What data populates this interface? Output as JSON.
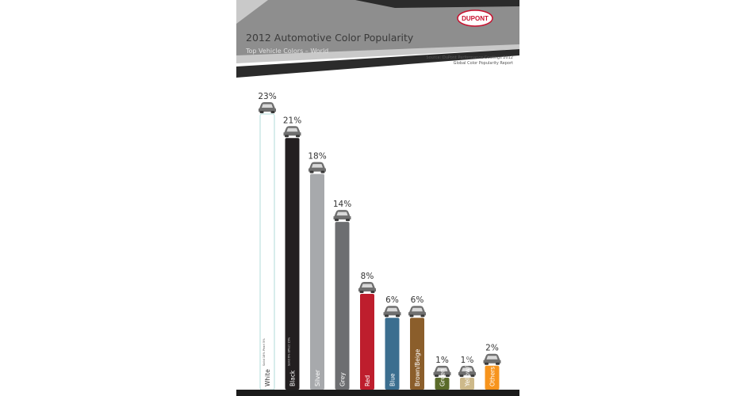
{
  "header": {
    "title": "2012 Automotive Color Popularity",
    "subtitle": "Top Vehicle Colors – World",
    "logo_text": "DUPONT",
    "source": "Source: DuPont Performance Coatings 2012 Global Color Popularity Report"
  },
  "colors": {
    "header_dark": "#2b2b2b",
    "header_grey": "#8e8e8e",
    "header_light": "#c9c9c9",
    "logo_red": "#c8102e",
    "car_icon": "#6f6f6f"
  },
  "chart_data": {
    "type": "bar",
    "title": "2012 Automotive Color Popularity",
    "subtitle": "Top Vehicle Colors – World",
    "categories": [
      "White",
      "Black",
      "Silver",
      "Grey",
      "Red",
      "Blue",
      "Brown/Beige",
      "Green",
      "Yellow/Gold",
      "Others"
    ],
    "values": [
      23,
      21,
      18,
      14,
      8,
      6,
      6,
      1,
      1,
      2
    ],
    "value_labels": [
      "23%",
      "21%",
      "18%",
      "14%",
      "8%",
      "6%",
      "6%",
      "1%",
      "1%",
      "2%"
    ],
    "bar_colors": [
      "#ffffff",
      "#231f20",
      "#a7a9ac",
      "#6d6e71",
      "#be1e2d",
      "#3b6e8f",
      "#8b5e2b",
      "#5a6b2a",
      "#cdb98a",
      "#f7941d"
    ],
    "sub_labels": [
      "Solid 18%  Pearl 5%",
      "Solid 6%  Effect 15%",
      "",
      "",
      "",
      "",
      "",
      "",
      "",
      ""
    ],
    "icon": "car-icon",
    "ylim": [
      0,
      23
    ],
    "grid": false,
    "legend": "none"
  }
}
